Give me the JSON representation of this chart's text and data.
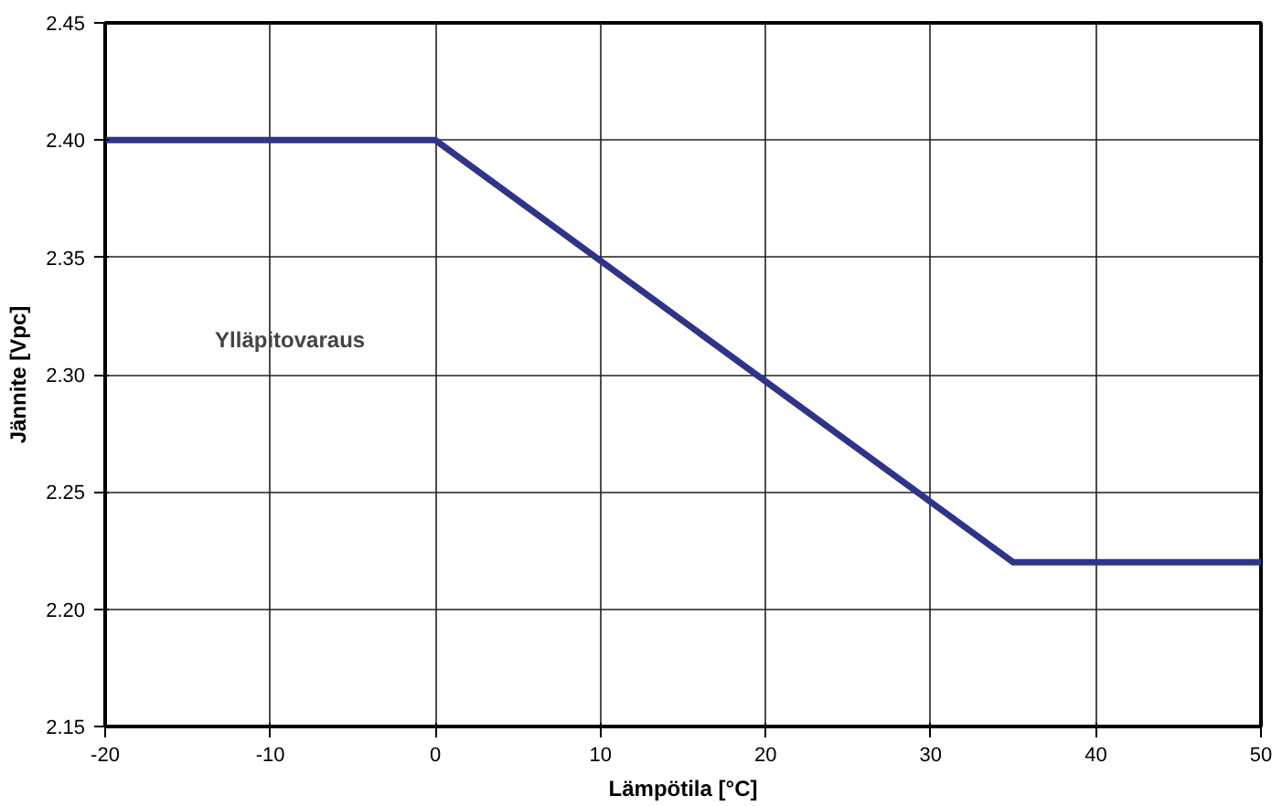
{
  "chart_data": {
    "type": "line",
    "xlabel": "Lämpötila [°C]",
    "ylabel": "Jännite [Vpc]",
    "x": [
      -20,
      0,
      35,
      50
    ],
    "series": [
      {
        "color": "#2e3588",
        "values": [
          2.4,
          2.4,
          2.22,
          2.22
        ]
      }
    ],
    "xlim": [
      -20,
      50
    ],
    "ylim": [
      2.15,
      2.45
    ],
    "xticks": [
      -20,
      -10,
      0,
      10,
      20,
      30,
      40,
      50
    ],
    "yticks": [
      2.15,
      {
        "value": 2.2,
        "label": "2.20"
      },
      2.25,
      {
        "value": 2.3,
        "label": "2.30"
      },
      2.35,
      {
        "value": 2.4,
        "label": "2.40"
      },
      2.45
    ],
    "grid": true,
    "line_style": "solid",
    "marker": "none",
    "annotations": [
      "Ylläpitovaraus"
    ]
  }
}
